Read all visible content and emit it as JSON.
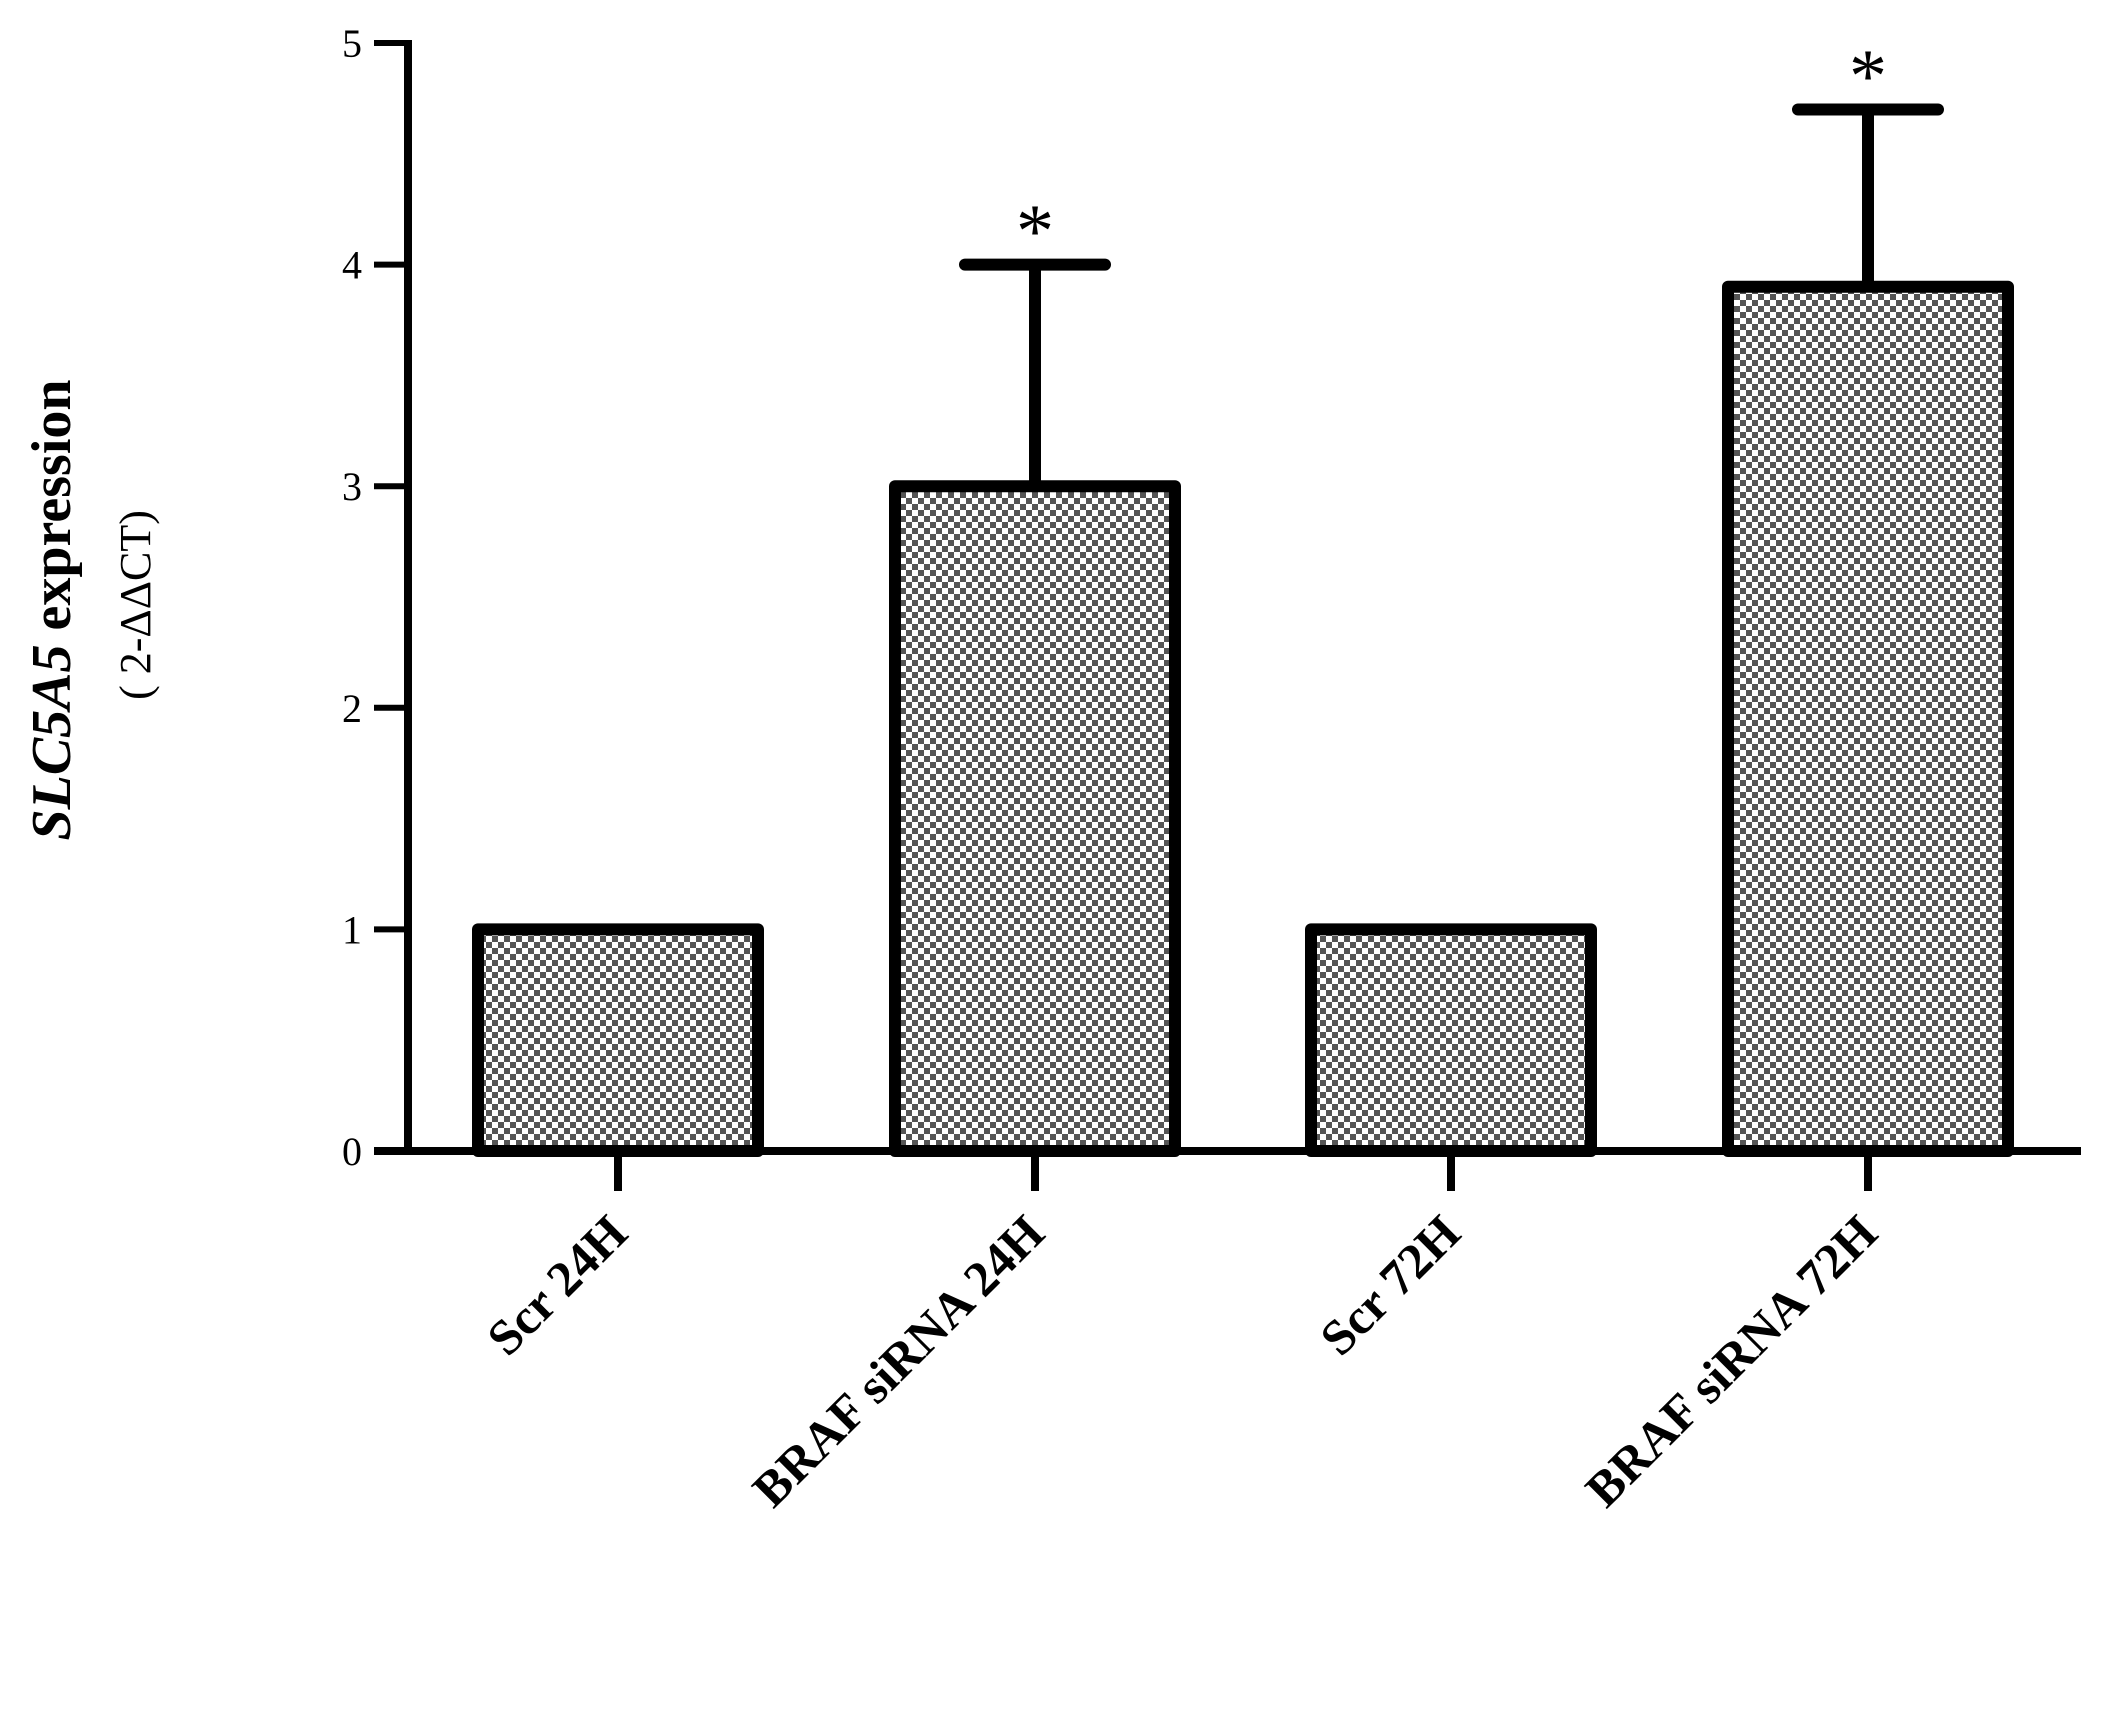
{
  "chart_data": {
    "type": "bar",
    "categories": [
      "Scr 24H",
      "BRAF siRNA 24H",
      "Scr 72H",
      "BRAF siRNA 72H"
    ],
    "values": [
      1.0,
      3.0,
      1.0,
      3.9
    ],
    "error_upper": [
      0,
      1.0,
      0,
      0.8
    ],
    "significance": [
      "",
      "*",
      "",
      "*"
    ],
    "ylabel_gene": "SLC5A5",
    "ylabel_rest": " expression",
    "ylabel_sub": "( 2-ΔΔCT)",
    "yticks": [
      "0",
      "1",
      "2",
      "3",
      "4",
      "5"
    ],
    "ylim": [
      0,
      5
    ],
    "bar_fill": "checkered gray",
    "bar_color": "#000000",
    "grid": false
  }
}
